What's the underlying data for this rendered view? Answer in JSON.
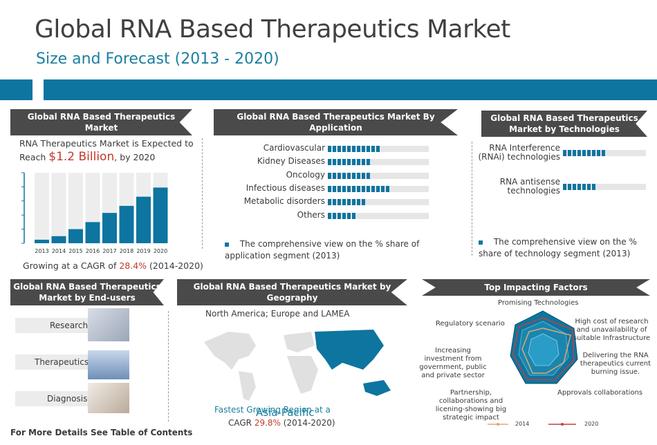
{
  "title": "Global RNA Based Therapeutics Market",
  "subtitle": "Size and Forecast (2013 - 2020)",
  "market": {
    "header": "Global RNA Based Therapeutics Market",
    "line1": "RNA Therapeutics Market is Expected to",
    "reach_prefix": "Reach ",
    "reach_value": "$1.2 Billion",
    "reach_suffix": ", by 2020",
    "cagr_prefix": "Growing at a CAGR of ",
    "cagr_value": "28.4%",
    "cagr_suffix": " (2014-2020)"
  },
  "application": {
    "header": "Global RNA Based Therapeutics Market By Application",
    "note": "The comprehensive view on the % share of application segment (2013)"
  },
  "technology": {
    "header": "Global RNA Based Therapeutics Market  by Technologies",
    "note": "The comprehensive view on the % share of technology segment (2013)"
  },
  "endusers": {
    "header": "Global RNA Based Therapeutics Market by End-users",
    "items": [
      "Research",
      "Therapeutics",
      "Diagnosis"
    ]
  },
  "geography": {
    "header": "Global RNA Based Therapeutics Market by Geography",
    "regions": "North America; Europe and LAMEA",
    "highlight": "Asia-Pacific",
    "line1": "Fastest Growing Region at a",
    "cagr_prefix": "CAGR ",
    "cagr_value": "29.8%",
    "cagr_suffix": " (2014-2020)"
  },
  "factors": {
    "header": "Top Impacting Factors",
    "labels": [
      "Promising Technologies",
      "High cost of research and unavailability of suitable Infrastructure",
      "Delivering the RNA therapeutics current burning issue.",
      "Approvals collaborations",
      "Partnership, collaborations and licening-showing big strategic impact",
      "Increasing investment from government, public and private sector",
      "Regulatory scenario"
    ],
    "legend": [
      "2014",
      "2020"
    ]
  },
  "footer": "For More Details See Table of Contents",
  "colors": {
    "accent": "#0d75a0",
    "highlight": "#c0392b",
    "header_bg": "#4a4a4a",
    "geo_text": "#1a7fa0"
  },
  "chart_data": [
    {
      "type": "bar",
      "title": "",
      "categories": [
        "2013",
        "2014",
        "2015",
        "2016",
        "2017",
        "2018",
        "2019",
        "2020"
      ],
      "values": [
        0.05,
        0.1,
        0.2,
        0.3,
        0.43,
        0.53,
        0.66,
        0.79
      ],
      "ylim": [
        0,
        1
      ]
    },
    {
      "type": "bar",
      "orientation": "horizontal",
      "categories": [
        "Cardiovascular",
        "Kidney Diseases",
        "Oncology",
        "Infectious diseases",
        "Metabolic disorders",
        "Others"
      ],
      "values": [
        0.28,
        0.23,
        0.21,
        0.32,
        0.2,
        0.15
      ],
      "xlim": [
        0,
        0.51
      ]
    },
    {
      "type": "bar",
      "orientation": "horizontal",
      "categories": [
        "RNA Interference (RNAi) technologies",
        "RNA antisense technologies"
      ],
      "values": [
        0.5,
        0.38
      ],
      "xlim": [
        0,
        1
      ]
    }
  ]
}
